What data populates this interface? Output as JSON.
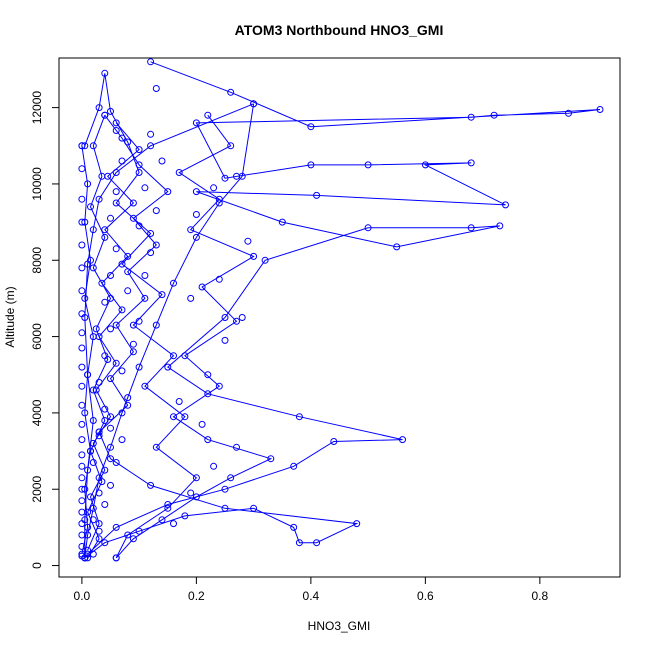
{
  "chart_data": {
    "type": "line",
    "title": "ATOM3 Northbound HNO3_GMI",
    "xlabel": "HNO3_GMI",
    "ylabel": "Altitude (m)",
    "xlim": [
      -0.04,
      0.94
    ],
    "ylim": [
      -300,
      13300
    ],
    "x_ticks": [
      0.0,
      0.2,
      0.4,
      0.6,
      0.8
    ],
    "x_tick_labels": [
      "0.0",
      "0.2",
      "0.4",
      "0.6",
      "0.8"
    ],
    "y_ticks": [
      0,
      2000,
      4000,
      6000,
      8000,
      10000,
      12000
    ],
    "y_tick_labels": [
      "0",
      "2000",
      "4000",
      "6000",
      "8000",
      "10000",
      "12000"
    ],
    "series_color": "#0000ff",
    "marker": "open-circle",
    "grid": false,
    "legend": "none",
    "series": [
      {
        "points": [
          [
            0.005,
            200
          ],
          [
            0.01,
            800
          ],
          [
            0.02,
            1500
          ],
          [
            0.03,
            2300
          ],
          [
            0.05,
            3100
          ],
          [
            0.07,
            4000
          ],
          [
            0.1,
            5200
          ],
          [
            0.13,
            6300
          ],
          [
            0.16,
            7400
          ],
          [
            0.2,
            8600
          ],
          [
            0.24,
            9500
          ],
          [
            0.28,
            10200
          ],
          [
            0.3,
            12100
          ]
        ]
      },
      {
        "points": [
          [
            0.3,
            12100
          ],
          [
            0.12,
            11000
          ],
          [
            0.06,
            10300
          ],
          [
            0.03,
            9600
          ],
          [
            0.02,
            8800
          ],
          [
            0.01,
            7900
          ],
          [
            0.005,
            6500
          ],
          [
            0.01,
            5000
          ],
          [
            0.02,
            3800
          ],
          [
            0.01,
            2500
          ],
          [
            0.005,
            1200
          ],
          [
            0.005,
            200
          ]
        ]
      },
      {
        "points": [
          [
            0.01,
            300
          ],
          [
            0.06,
            1000
          ],
          [
            0.15,
            1600
          ],
          [
            0.25,
            2000
          ],
          [
            0.37,
            2600
          ],
          [
            0.44,
            3250
          ],
          [
            0.56,
            3300
          ],
          [
            0.38,
            3900
          ],
          [
            0.22,
            4500
          ],
          [
            0.15,
            5200
          ],
          [
            0.25,
            6500
          ],
          [
            0.32,
            8000
          ],
          [
            0.5,
            8850
          ],
          [
            0.68,
            8850
          ],
          [
            0.73,
            8900
          ],
          [
            0.55,
            8350
          ],
          [
            0.35,
            9000
          ],
          [
            0.2,
            9800
          ],
          [
            0.41,
            9700
          ],
          [
            0.74,
            9450
          ],
          [
            0.6,
            10500
          ],
          [
            0.68,
            10550
          ],
          [
            0.5,
            10500
          ],
          [
            0.4,
            10500
          ],
          [
            0.25,
            10150
          ],
          [
            0.2,
            11600
          ],
          [
            0.68,
            11750
          ],
          [
            0.72,
            11800
          ],
          [
            0.85,
            11850
          ],
          [
            0.905,
            11950
          ],
          [
            0.4,
            11500
          ],
          [
            0.26,
            12400
          ],
          [
            0.12,
            13200
          ]
        ]
      },
      {
        "points": [
          [
            0.005,
            200
          ],
          [
            0.04,
            600
          ],
          [
            0.1,
            900
          ],
          [
            0.18,
            1300
          ],
          [
            0.3,
            1500
          ],
          [
            0.37,
            1000
          ],
          [
            0.38,
            600
          ],
          [
            0.41,
            600
          ],
          [
            0.48,
            1100
          ],
          [
            0.25,
            1500
          ],
          [
            0.12,
            2100
          ],
          [
            0.05,
            2800
          ],
          [
            0.03,
            3500
          ]
        ]
      },
      {
        "points": [
          [
            0.03,
            3500
          ],
          [
            0.08,
            4200
          ],
          [
            0.05,
            4900
          ],
          [
            0.09,
            5600
          ],
          [
            0.06,
            6300
          ],
          [
            0.11,
            7000
          ],
          [
            0.08,
            7700
          ],
          [
            0.13,
            8400
          ],
          [
            0.09,
            9100
          ],
          [
            0.15,
            9800
          ],
          [
            0.1,
            10500
          ],
          [
            0.07,
            11200
          ],
          [
            0.04,
            11800
          ]
        ]
      },
      {
        "points": [
          [
            0.04,
            11800
          ],
          [
            0.02,
            11000
          ],
          [
            0.035,
            10200
          ],
          [
            0.015,
            9400
          ],
          [
            0.04,
            8600
          ],
          [
            0.02,
            7800
          ],
          [
            0.05,
            7000
          ],
          [
            0.025,
            6200
          ],
          [
            0.045,
            5400
          ],
          [
            0.02,
            4600
          ],
          [
            0.04,
            3800
          ],
          [
            0.015,
            3000
          ],
          [
            0.035,
            2200
          ],
          [
            0.01,
            1400
          ],
          [
            0.03,
            700
          ],
          [
            0.01,
            200
          ]
        ]
      },
      {
        "points": [
          [
            0.06,
            200
          ],
          [
            0.09,
            700
          ],
          [
            0.14,
            1200
          ],
          [
            0.2,
            1800
          ],
          [
            0.26,
            2300
          ],
          [
            0.33,
            2800
          ],
          [
            0.22,
            3300
          ],
          [
            0.16,
            3900
          ],
          [
            0.24,
            4700
          ],
          [
            0.18,
            5500
          ],
          [
            0.27,
            6400
          ],
          [
            0.21,
            7300
          ],
          [
            0.3,
            8100
          ],
          [
            0.19,
            8800
          ],
          [
            0.24,
            9600
          ],
          [
            0.17,
            10300
          ],
          [
            0.26,
            11000
          ],
          [
            0.22,
            11800
          ]
        ]
      },
      {
        "points": [
          [
            0.005,
            11000
          ],
          [
            0.03,
            12000
          ],
          [
            0.04,
            12900
          ],
          [
            0.05,
            11900
          ],
          [
            0.08,
            11100
          ],
          [
            0.1,
            10300
          ],
          [
            0.06,
            9500
          ],
          [
            0.12,
            8700
          ],
          [
            0.07,
            7900
          ],
          [
            0.14,
            7100
          ],
          [
            0.09,
            6300
          ],
          [
            0.16,
            5500
          ],
          [
            0.11,
            4700
          ],
          [
            0.18,
            3900
          ],
          [
            0.13,
            3100
          ],
          [
            0.2,
            2300
          ],
          [
            0.15,
            1500
          ],
          [
            0.08,
            800
          ],
          [
            0.06,
            200
          ]
        ]
      },
      {
        "points": [
          [
            0.01,
            400
          ],
          [
            0.03,
            1100
          ],
          [
            0.015,
            1800
          ],
          [
            0.04,
            2500
          ],
          [
            0.02,
            3200
          ],
          [
            0.05,
            3900
          ],
          [
            0.025,
            4600
          ],
          [
            0.06,
            5300
          ],
          [
            0.03,
            6000
          ],
          [
            0.07,
            6700
          ],
          [
            0.035,
            7400
          ],
          [
            0.08,
            8100
          ],
          [
            0.04,
            8800
          ],
          [
            0.09,
            9500
          ],
          [
            0.045,
            10200
          ],
          [
            0.1,
            10900
          ],
          [
            0.06,
            11600
          ]
        ]
      },
      {
        "points": [
          [
            0.0,
            11000
          ],
          [
            0.01,
            10000
          ],
          [
            0.005,
            9000
          ],
          [
            0.015,
            8000
          ],
          [
            0.005,
            7000
          ],
          [
            0.02,
            6000
          ],
          [
            0.01,
            5000
          ],
          [
            0.005,
            4000
          ],
          [
            0.015,
            3000
          ],
          [
            0.005,
            2000
          ],
          [
            0.01,
            1000
          ],
          [
            0.0,
            300
          ]
        ]
      }
    ],
    "scatter_points": [
      [
        0.0,
        250
      ],
      [
        0.0,
        500
      ],
      [
        0.0,
        800
      ],
      [
        0.0,
        1100
      ],
      [
        0.0,
        1400
      ],
      [
        0.0,
        1700
      ],
      [
        0.0,
        2000
      ],
      [
        0.0,
        2300
      ],
      [
        0.0,
        2600
      ],
      [
        0.0,
        2900
      ],
      [
        0.0,
        3300
      ],
      [
        0.0,
        3700
      ],
      [
        0.0,
        4200
      ],
      [
        0.0,
        4700
      ],
      [
        0.0,
        5200
      ],
      [
        0.0,
        5700
      ],
      [
        0.0,
        6100
      ],
      [
        0.0,
        6600
      ],
      [
        0.0,
        7200
      ],
      [
        0.0,
        7800
      ],
      [
        0.0,
        8400
      ],
      [
        0.0,
        9000
      ],
      [
        0.0,
        9600
      ],
      [
        0.0,
        10400
      ],
      [
        0.0,
        11000
      ],
      [
        0.02,
        300
      ],
      [
        0.03,
        900
      ],
      [
        0.04,
        1600
      ],
      [
        0.05,
        2100
      ],
      [
        0.06,
        2700
      ],
      [
        0.07,
        3300
      ],
      [
        0.05,
        3600
      ],
      [
        0.08,
        4400
      ],
      [
        0.07,
        5100
      ],
      [
        0.09,
        5800
      ],
      [
        0.1,
        6400
      ],
      [
        0.08,
        7200
      ],
      [
        0.11,
        7600
      ],
      [
        0.12,
        8200
      ],
      [
        0.1,
        8900
      ],
      [
        0.13,
        9300
      ],
      [
        0.11,
        9900
      ],
      [
        0.14,
        10600
      ],
      [
        0.12,
        11300
      ],
      [
        0.13,
        12500
      ],
      [
        0.02,
        1200
      ],
      [
        0.03,
        1900
      ],
      [
        0.02,
        2700
      ],
      [
        0.03,
        3400
      ],
      [
        0.04,
        4100
      ],
      [
        0.03,
        4800
      ],
      [
        0.04,
        5500
      ],
      [
        0.05,
        6200
      ],
      [
        0.04,
        6900
      ],
      [
        0.05,
        7600
      ],
      [
        0.06,
        8300
      ],
      [
        0.05,
        9100
      ],
      [
        0.06,
        9800
      ],
      [
        0.07,
        10600
      ],
      [
        0.06,
        11400
      ],
      [
        0.16,
        1100
      ],
      [
        0.19,
        1900
      ],
      [
        0.23,
        2600
      ],
      [
        0.27,
        3100
      ],
      [
        0.21,
        3700
      ],
      [
        0.17,
        4300
      ],
      [
        0.22,
        5000
      ],
      [
        0.25,
        5900
      ],
      [
        0.28,
        6500
      ],
      [
        0.19,
        7000
      ],
      [
        0.24,
        7500
      ],
      [
        0.29,
        8500
      ],
      [
        0.2,
        9200
      ],
      [
        0.23,
        9900
      ],
      [
        0.27,
        10200
      ]
    ]
  }
}
